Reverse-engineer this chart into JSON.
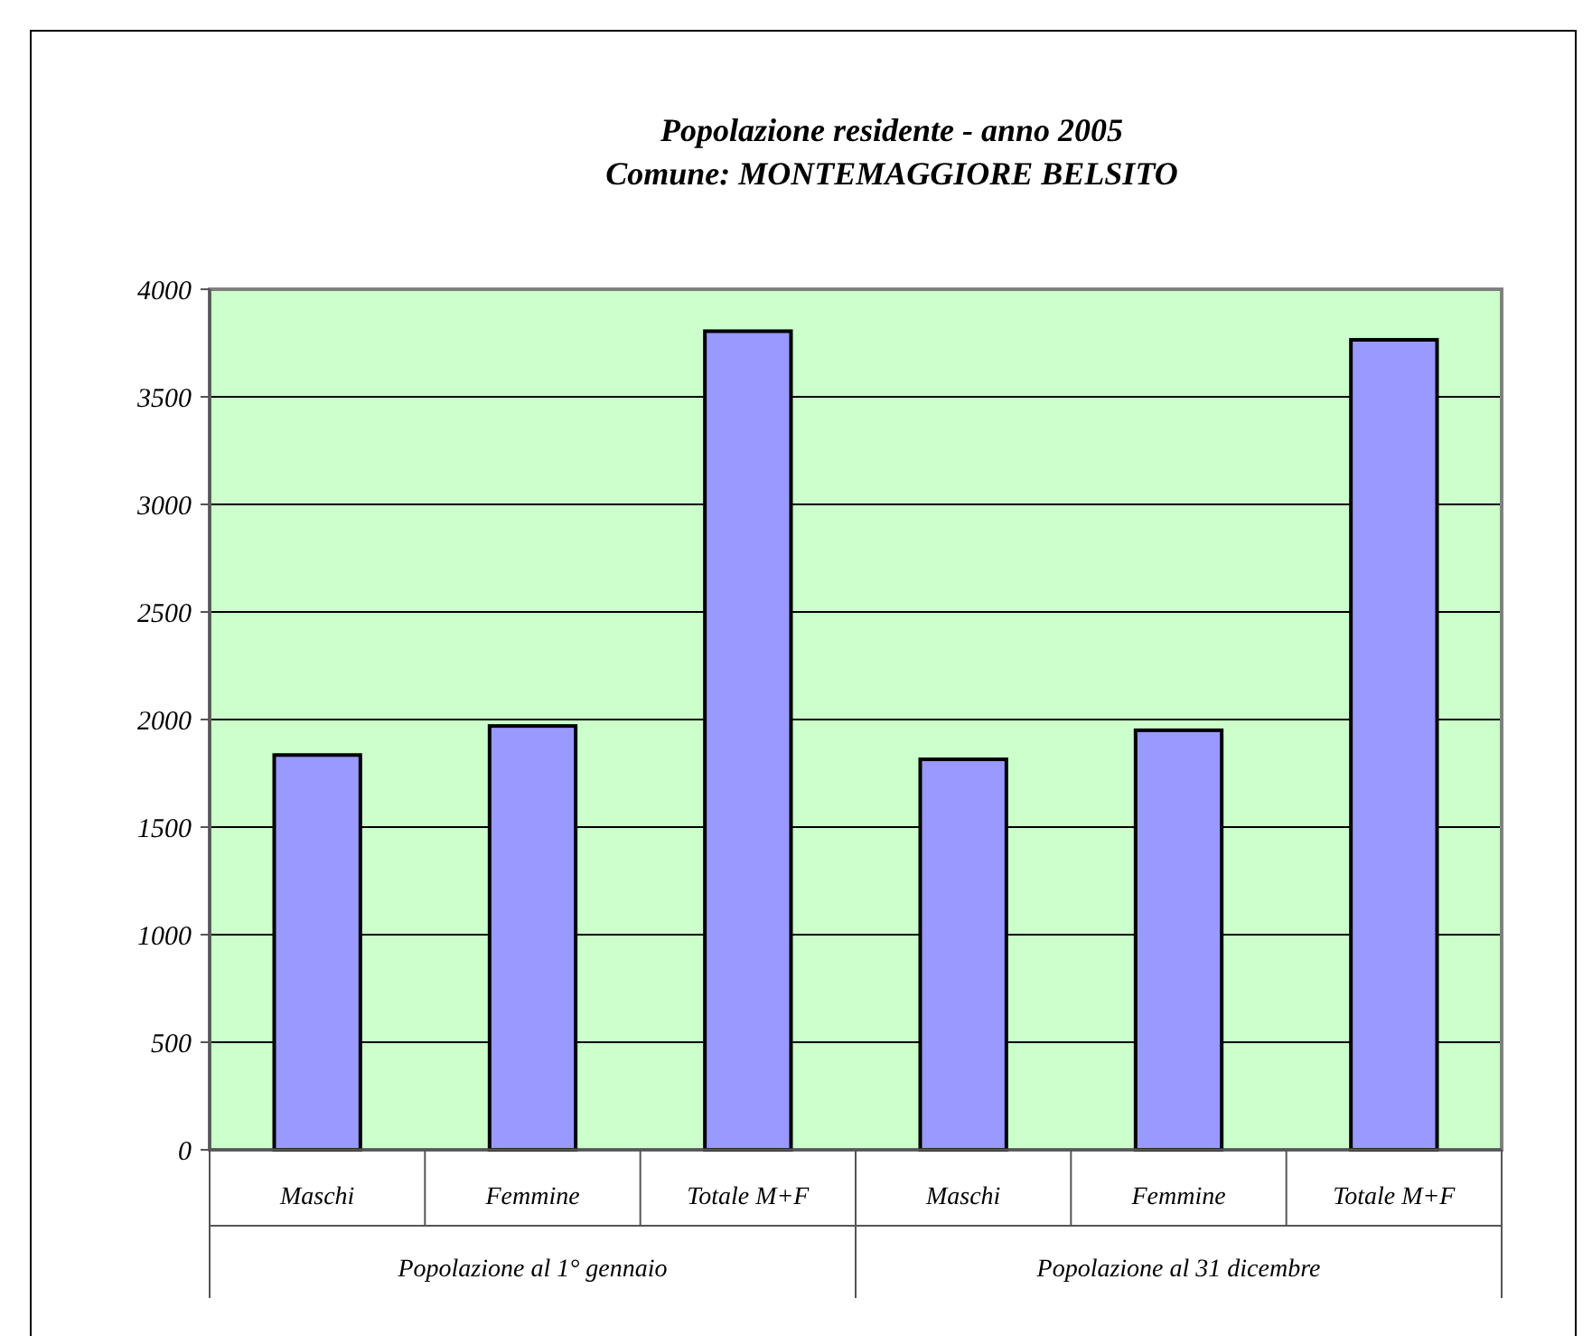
{
  "chart_data": {
    "type": "bar",
    "title": "Popolazione residente - anno 2005\nComune: MONTEMAGGIORE BELSITO",
    "categories": [
      "Maschi",
      "Femmine",
      "Totale M+F",
      "Maschi",
      "Femmine",
      "Totale M+F"
    ],
    "values": [
      1835,
      1970,
      3805,
      1815,
      1950,
      3765
    ],
    "color": "#9999ff",
    "ylim": [
      0,
      4000
    ],
    "yticks": [
      0,
      500,
      1000,
      1500,
      2000,
      2500,
      3000,
      3500,
      4000
    ],
    "grid": "y",
    "annotations": [
      "Popolazione al 1° gennaio",
      "Popolazione al 31 dicembre"
    ]
  }
}
